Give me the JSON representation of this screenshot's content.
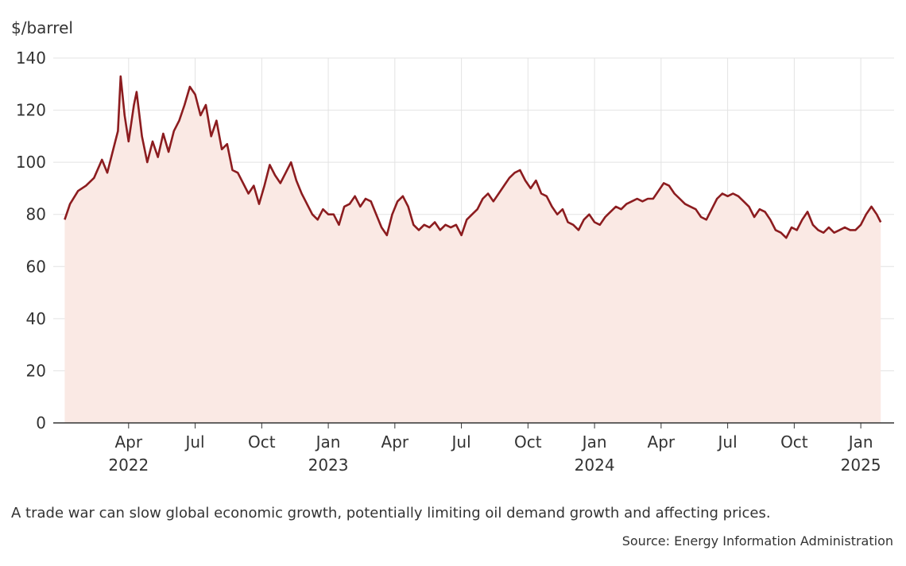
{
  "chart_data": {
    "type": "area",
    "y_unit": "$/barrel",
    "caption": "A trade war can slow global economic growth, potentially limiting oil demand growth and affecting prices.",
    "source": "Source: Energy Information Administration",
    "color": "#8c1c1f",
    "fill": "#fae9e4",
    "grid": true,
    "xlim": [
      2021.967,
      2025.125
    ],
    "ylim": [
      0,
      140
    ],
    "yticks": [
      0,
      20,
      40,
      60,
      80,
      100,
      120,
      140
    ],
    "xticks": [
      {
        "value": 2022.25,
        "label": "Apr"
      },
      {
        "value": 2022.5,
        "label": "Jul"
      },
      {
        "value": 2022.75,
        "label": "Oct"
      },
      {
        "value": 2023,
        "label": "Jan"
      },
      {
        "value": 2023.25,
        "label": "Apr"
      },
      {
        "value": 2023.5,
        "label": "Jul"
      },
      {
        "value": 2023.75,
        "label": "Oct"
      },
      {
        "value": 2024,
        "label": "Jan"
      },
      {
        "value": 2024.25,
        "label": "Apr"
      },
      {
        "value": 2024.5,
        "label": "Jul"
      },
      {
        "value": 2024.75,
        "label": "Oct"
      },
      {
        "value": 2025,
        "label": "Jan"
      }
    ],
    "year_ticks": [
      {
        "value": 2022.25,
        "label": "2022"
      },
      2023,
      2024,
      2025
    ],
    "x": [
      2022.01,
      2022.03,
      2022.06,
      2022.09,
      2022.12,
      2022.15,
      2022.17,
      2022.19,
      2022.21,
      2022.22,
      2022.235,
      2022.25,
      2022.27,
      2022.28,
      2022.3,
      2022.32,
      2022.34,
      2022.36,
      2022.38,
      2022.4,
      2022.42,
      2022.44,
      2022.46,
      2022.48,
      2022.5,
      2022.52,
      2022.54,
      2022.56,
      2022.58,
      2022.6,
      2022.62,
      2022.64,
      2022.66,
      2022.68,
      2022.7,
      2022.72,
      2022.74,
      2022.76,
      2022.78,
      2022.8,
      2022.82,
      2022.84,
      2022.86,
      2022.88,
      2022.9,
      2022.92,
      2022.94,
      2022.96,
      2022.98,
      2023,
      2023.02,
      2023.04,
      2023.06,
      2023.08,
      2023.1,
      2023.12,
      2023.14,
      2023.16,
      2023.18,
      2023.2,
      2023.22,
      2023.24,
      2023.26,
      2023.28,
      2023.3,
      2023.32,
      2023.34,
      2023.36,
      2023.38,
      2023.4,
      2023.42,
      2023.44,
      2023.46,
      2023.48,
      2023.5,
      2023.52,
      2023.54,
      2023.56,
      2023.58,
      2023.6,
      2023.62,
      2023.64,
      2023.66,
      2023.68,
      2023.7,
      2023.72,
      2023.74,
      2023.76,
      2023.78,
      2023.8,
      2023.82,
      2023.84,
      2023.86,
      2023.88,
      2023.9,
      2023.92,
      2023.94,
      2023.96,
      2023.98,
      2024,
      2024.02,
      2024.04,
      2024.06,
      2024.08,
      2024.1,
      2024.12,
      2024.14,
      2024.16,
      2024.18,
      2024.2,
      2024.22,
      2024.24,
      2024.26,
      2024.28,
      2024.3,
      2024.32,
      2024.34,
      2024.36,
      2024.38,
      2024.4,
      2024.42,
      2024.44,
      2024.46,
      2024.48,
      2024.5,
      2024.52,
      2024.54,
      2024.56,
      2024.58,
      2024.6,
      2024.62,
      2024.64,
      2024.66,
      2024.68,
      2024.7,
      2024.72,
      2024.74,
      2024.76,
      2024.78,
      2024.8,
      2024.82,
      2024.84,
      2024.86,
      2024.88,
      2024.9,
      2024.92,
      2024.94,
      2024.96,
      2024.98,
      2025,
      2025.02,
      2025.04,
      2025.06,
      2025.075
    ],
    "values": [
      78,
      84,
      89,
      91,
      94,
      101,
      96,
      104,
      112,
      133,
      118,
      108,
      122,
      127,
      110,
      100,
      108,
      102,
      111,
      104,
      112,
      116,
      122,
      129,
      126,
      118,
      122,
      110,
      116,
      105,
      107,
      97,
      96,
      92,
      88,
      91,
      84,
      91,
      99,
      95,
      92,
      96,
      100,
      93,
      88,
      84,
      80,
      78,
      82,
      80,
      80,
      76,
      83,
      84,
      87,
      83,
      86,
      85,
      80,
      75,
      72,
      80,
      85,
      87,
      83,
      76,
      74,
      76,
      75,
      77,
      74,
      76,
      75,
      76,
      72,
      78,
      80,
      82,
      86,
      88,
      85,
      88,
      91,
      94,
      96,
      97,
      93,
      90,
      93,
      88,
      87,
      83,
      80,
      82,
      77,
      76,
      74,
      78,
      80,
      77,
      76,
      79,
      81,
      83,
      82,
      84,
      85,
      86,
      85,
      86,
      86,
      89,
      92,
      91,
      88,
      86,
      84,
      83,
      82,
      79,
      78,
      82,
      86,
      88,
      87,
      88,
      87,
      85,
      83,
      79,
      82,
      81,
      78,
      74,
      73,
      71,
      75,
      74,
      78,
      81,
      76,
      74,
      73,
      75,
      73,
      74,
      75,
      74,
      74,
      76,
      80,
      83,
      80,
      77
    ]
  }
}
